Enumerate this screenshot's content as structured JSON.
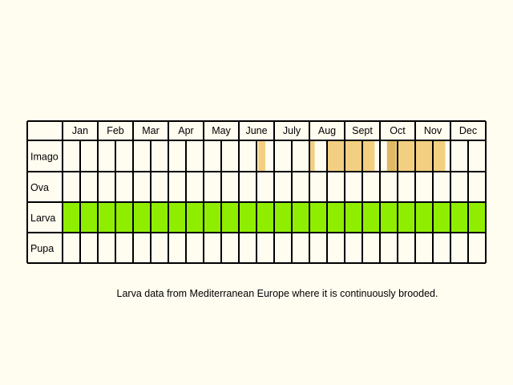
{
  "chart_data": {
    "type": "heatmap",
    "title": "",
    "months": [
      "Jan",
      "Feb",
      "Mar",
      "Apr",
      "May",
      "June",
      "July",
      "Aug",
      "Sept",
      "Oct",
      "Nov",
      "Dec"
    ],
    "stages": [
      "Imago",
      "Ova",
      "Larva",
      "Pupa"
    ],
    "subdivisions_per_month": 2,
    "colors": {
      "background": "#fffcf0",
      "grid": "#000000",
      "imago_light": "#f3cf82",
      "imago_dark": "#e0b866",
      "larva": "#8fee00"
    },
    "series": [
      {
        "name": "Imago",
        "segments": [
          {
            "start_month": 6.55,
            "end_month": 6.75,
            "shade": "light"
          },
          {
            "start_month": 8.0,
            "end_month": 8.15,
            "shade": "light"
          },
          {
            "start_month": 8.5,
            "end_month": 9.85,
            "shade": "light"
          },
          {
            "start_month": 10.2,
            "end_month": 10.45,
            "shade": "dark"
          },
          {
            "start_month": 10.45,
            "end_month": 11.85,
            "shade": "light"
          }
        ]
      },
      {
        "name": "Ova",
        "segments": []
      },
      {
        "name": "Larva",
        "segments": [
          {
            "start_month": 1,
            "end_month": 13,
            "shade": "larva"
          }
        ]
      },
      {
        "name": "Pupa",
        "segments": []
      }
    ]
  },
  "caption": "Larva data from Mediterranean Europe where it is continuously brooded."
}
